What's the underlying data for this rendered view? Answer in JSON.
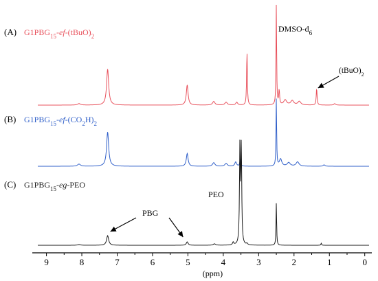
{
  "chart_data": {
    "type": "line",
    "xlabel": "(ppm)",
    "ylabel": "",
    "xlim": [
      9.4,
      -0.2
    ],
    "x_reversed": true,
    "x_ticks": [
      9,
      8,
      7,
      6,
      5,
      4,
      3,
      2,
      1,
      0
    ],
    "grid": false,
    "series": [
      {
        "key": "A",
        "tag": "(A)",
        "name_parts": [
          {
            "t": "G1PBG",
            "s": "n"
          },
          {
            "t": "15",
            "s": "sub"
          },
          {
            "t": "-",
            "s": "n"
          },
          {
            "t": "ef",
            "s": "it"
          },
          {
            "t": "-(tBuO)",
            "s": "n"
          },
          {
            "t": "2",
            "s": "sub"
          }
        ],
        "color": "#e8505b",
        "baseline": 0.0,
        "peaks": [
          {
            "x": 8.08,
            "h": 0.02,
            "w": 0.05
          },
          {
            "x": 7.27,
            "h": 0.5,
            "w": 0.035
          },
          {
            "x": 5.02,
            "h": 0.28,
            "w": 0.03
          },
          {
            "x": 4.27,
            "h": 0.05,
            "w": 0.04
          },
          {
            "x": 3.92,
            "h": 0.04,
            "w": 0.04
          },
          {
            "x": 3.62,
            "h": 0.04,
            "w": 0.03
          },
          {
            "x": 3.33,
            "h": 0.75,
            "w": 0.012
          },
          {
            "x": 2.5,
            "h": 1.4,
            "w": 0.01
          },
          {
            "x": 2.42,
            "h": 0.2,
            "w": 0.015
          },
          {
            "x": 2.25,
            "h": 0.07,
            "w": 0.05
          },
          {
            "x": 2.05,
            "h": 0.06,
            "w": 0.05
          },
          {
            "x": 1.85,
            "h": 0.05,
            "w": 0.05
          },
          {
            "x": 1.36,
            "h": 0.23,
            "w": 0.014
          },
          {
            "x": 0.85,
            "h": 0.02,
            "w": 0.03
          }
        ]
      },
      {
        "key": "B",
        "tag": "(B)",
        "name_parts": [
          {
            "t": "G1PBG",
            "s": "n"
          },
          {
            "t": "15",
            "s": "sub"
          },
          {
            "t": "-",
            "s": "n"
          },
          {
            "t": "ef",
            "s": "it"
          },
          {
            "t": "-(CO",
            "s": "n"
          },
          {
            "t": "2",
            "s": "sub"
          },
          {
            "t": "H)",
            "s": "n"
          },
          {
            "t": "2",
            "s": "sub"
          }
        ],
        "color": "#2f5fc9",
        "baseline": 0.0,
        "peaks": [
          {
            "x": 8.08,
            "h": 0.03,
            "w": 0.05
          },
          {
            "x": 7.27,
            "h": 0.48,
            "w": 0.035
          },
          {
            "x": 5.02,
            "h": 0.18,
            "w": 0.03
          },
          {
            "x": 4.27,
            "h": 0.05,
            "w": 0.04
          },
          {
            "x": 3.92,
            "h": 0.04,
            "w": 0.04
          },
          {
            "x": 3.65,
            "h": 0.06,
            "w": 0.03
          },
          {
            "x": 3.52,
            "h": 0.1,
            "w": 0.015
          },
          {
            "x": 2.5,
            "h": 0.95,
            "w": 0.01
          },
          {
            "x": 2.38,
            "h": 0.1,
            "w": 0.04
          },
          {
            "x": 2.15,
            "h": 0.05,
            "w": 0.05
          },
          {
            "x": 1.9,
            "h": 0.06,
            "w": 0.05
          },
          {
            "x": 1.15,
            "h": 0.02,
            "w": 0.03
          }
        ]
      },
      {
        "key": "C",
        "tag": "(C)",
        "name_parts": [
          {
            "t": "G1PBG",
            "s": "n"
          },
          {
            "t": "15",
            "s": "sub"
          },
          {
            "t": "-",
            "s": "n"
          },
          {
            "t": "eg",
            "s": "it"
          },
          {
            "t": "-PEO",
            "s": "n"
          }
        ],
        "color": "#1a1a1a",
        "baseline": 0.0,
        "peaks": [
          {
            "x": 8.08,
            "h": 0.01,
            "w": 0.05
          },
          {
            "x": 7.27,
            "h": 0.14,
            "w": 0.035
          },
          {
            "x": 5.02,
            "h": 0.05,
            "w": 0.03
          },
          {
            "x": 4.25,
            "h": 0.02,
            "w": 0.04
          },
          {
            "x": 3.72,
            "h": 0.04,
            "w": 0.02
          },
          {
            "x": 3.53,
            "h": 1.4,
            "w": 0.014
          },
          {
            "x": 3.49,
            "h": 1.4,
            "w": 0.014
          },
          {
            "x": 3.33,
            "h": 0.02,
            "w": 0.02
          },
          {
            "x": 2.5,
            "h": 0.62,
            "w": 0.01
          },
          {
            "x": 1.23,
            "h": 0.03,
            "w": 0.012
          }
        ]
      }
    ],
    "annotations": [
      {
        "id": "dmso",
        "parts": [
          {
            "t": "DMSO-d",
            "s": "n"
          },
          {
            "t": "6",
            "s": "sub"
          }
        ],
        "color": "#000000"
      },
      {
        "id": "tbuo",
        "parts": [
          {
            "t": "(tBuO)",
            "s": "n"
          },
          {
            "t": "2",
            "s": "sub"
          }
        ],
        "color": "#000000"
      },
      {
        "id": "peo",
        "parts": [
          {
            "t": "PEO",
            "s": "n"
          }
        ],
        "color": "#000000"
      },
      {
        "id": "pbg",
        "parts": [
          {
            "t": "PBG",
            "s": "n"
          }
        ],
        "color": "#000000"
      }
    ]
  }
}
